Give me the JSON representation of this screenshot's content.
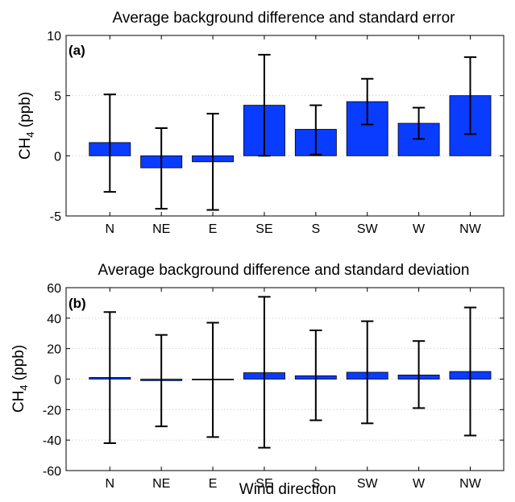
{
  "xlabel": "Wind direction",
  "colors": {
    "bar": "#0a3cff",
    "bar_edge": "#000000",
    "error": "#000000",
    "grid": "#c8c8c8"
  },
  "chart_data": [
    {
      "type": "bar",
      "panel_label": "(a)",
      "title": "Average background difference and standard error",
      "ylabel_main": "CH",
      "ylabel_sub": "4",
      "ylabel_unit": " (ppb)",
      "categories": [
        "N",
        "NE",
        "E",
        "SE",
        "S",
        "SW",
        "W",
        "NW"
      ],
      "values": [
        1.1,
        -1.0,
        -0.5,
        4.2,
        2.2,
        4.5,
        2.7,
        5.0
      ],
      "error_low": [
        -3.0,
        -4.4,
        -4.5,
        0.0,
        0.1,
        2.6,
        1.4,
        1.8
      ],
      "error_high": [
        5.1,
        2.3,
        3.5,
        8.4,
        4.2,
        6.4,
        4.0,
        8.2
      ],
      "ylim": [
        -5,
        10
      ],
      "yticks": [
        -5,
        0,
        5,
        10
      ],
      "grid": "horizontal dotted"
    },
    {
      "type": "bar",
      "panel_label": "(b)",
      "title": "Average background difference and standard deviation",
      "ylabel_main": "CH",
      "ylabel_sub": "4",
      "ylabel_unit": " (ppb)",
      "categories": [
        "N",
        "NE",
        "E",
        "SE",
        "S",
        "SW",
        "W",
        "NW"
      ],
      "values": [
        1.1,
        -1.0,
        -0.5,
        4.2,
        2.2,
        4.5,
        2.7,
        5.0
      ],
      "error_low": [
        -42,
        -31,
        -38,
        -45,
        -27,
        -29,
        -19,
        -37
      ],
      "error_high": [
        44,
        29,
        37,
        54,
        32,
        38,
        25,
        47
      ],
      "ylim": [
        -60,
        60
      ],
      "yticks": [
        -60,
        -40,
        -20,
        0,
        20,
        40,
        60
      ],
      "grid": "horizontal dotted"
    }
  ]
}
